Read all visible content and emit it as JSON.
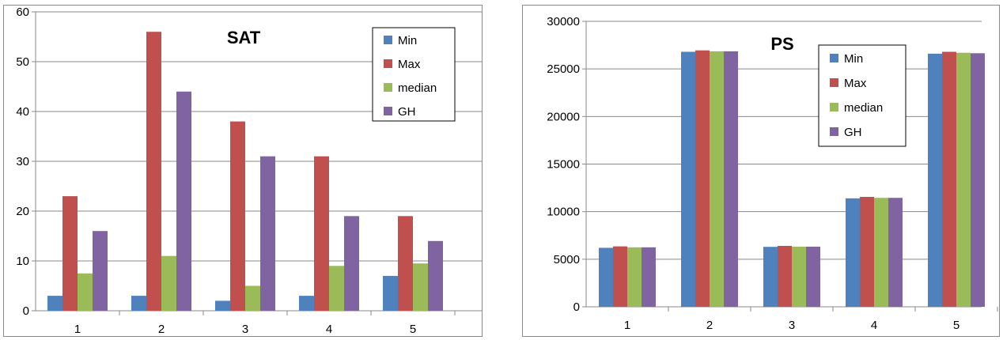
{
  "chart_data": [
    {
      "type": "bar",
      "title": "SAT",
      "xlabel": "",
      "ylabel": "",
      "categories": [
        "1",
        "2",
        "3",
        "4",
        "5"
      ],
      "ylim": [
        0,
        60
      ],
      "yticks": [
        0,
        10,
        20,
        30,
        40,
        50,
        60
      ],
      "grid": true,
      "legend_position": "top-right",
      "series": [
        {
          "name": "Min",
          "color": "#4f81bd",
          "values": [
            3,
            3,
            2,
            3,
            7
          ]
        },
        {
          "name": "Max",
          "color": "#c0504d",
          "values": [
            23,
            56,
            38,
            31,
            19
          ]
        },
        {
          "name": "median",
          "color": "#9bbb59",
          "values": [
            7.5,
            11,
            5,
            9,
            9.5
          ]
        },
        {
          "name": "GH",
          "color": "#8064a2",
          "values": [
            16,
            44,
            31,
            19,
            14
          ]
        }
      ]
    },
    {
      "type": "bar",
      "title": "PS",
      "xlabel": "",
      "ylabel": "",
      "categories": [
        "1",
        "2",
        "3",
        "4",
        "5"
      ],
      "ylim": [
        0,
        30000
      ],
      "yticks": [
        0,
        5000,
        10000,
        15000,
        20000,
        25000,
        30000
      ],
      "grid": true,
      "legend_position": "top-right",
      "series": [
        {
          "name": "Min",
          "color": "#4f81bd",
          "values": [
            6200,
            26800,
            6300,
            11400,
            26600
          ]
        },
        {
          "name": "Max",
          "color": "#c0504d",
          "values": [
            6350,
            26950,
            6400,
            11550,
            26800
          ]
        },
        {
          "name": "median",
          "color": "#9bbb59",
          "values": [
            6250,
            26850,
            6320,
            11450,
            26700
          ]
        },
        {
          "name": "GH",
          "color": "#8064a2",
          "values": [
            6250,
            26850,
            6320,
            11450,
            26650
          ]
        }
      ]
    }
  ]
}
